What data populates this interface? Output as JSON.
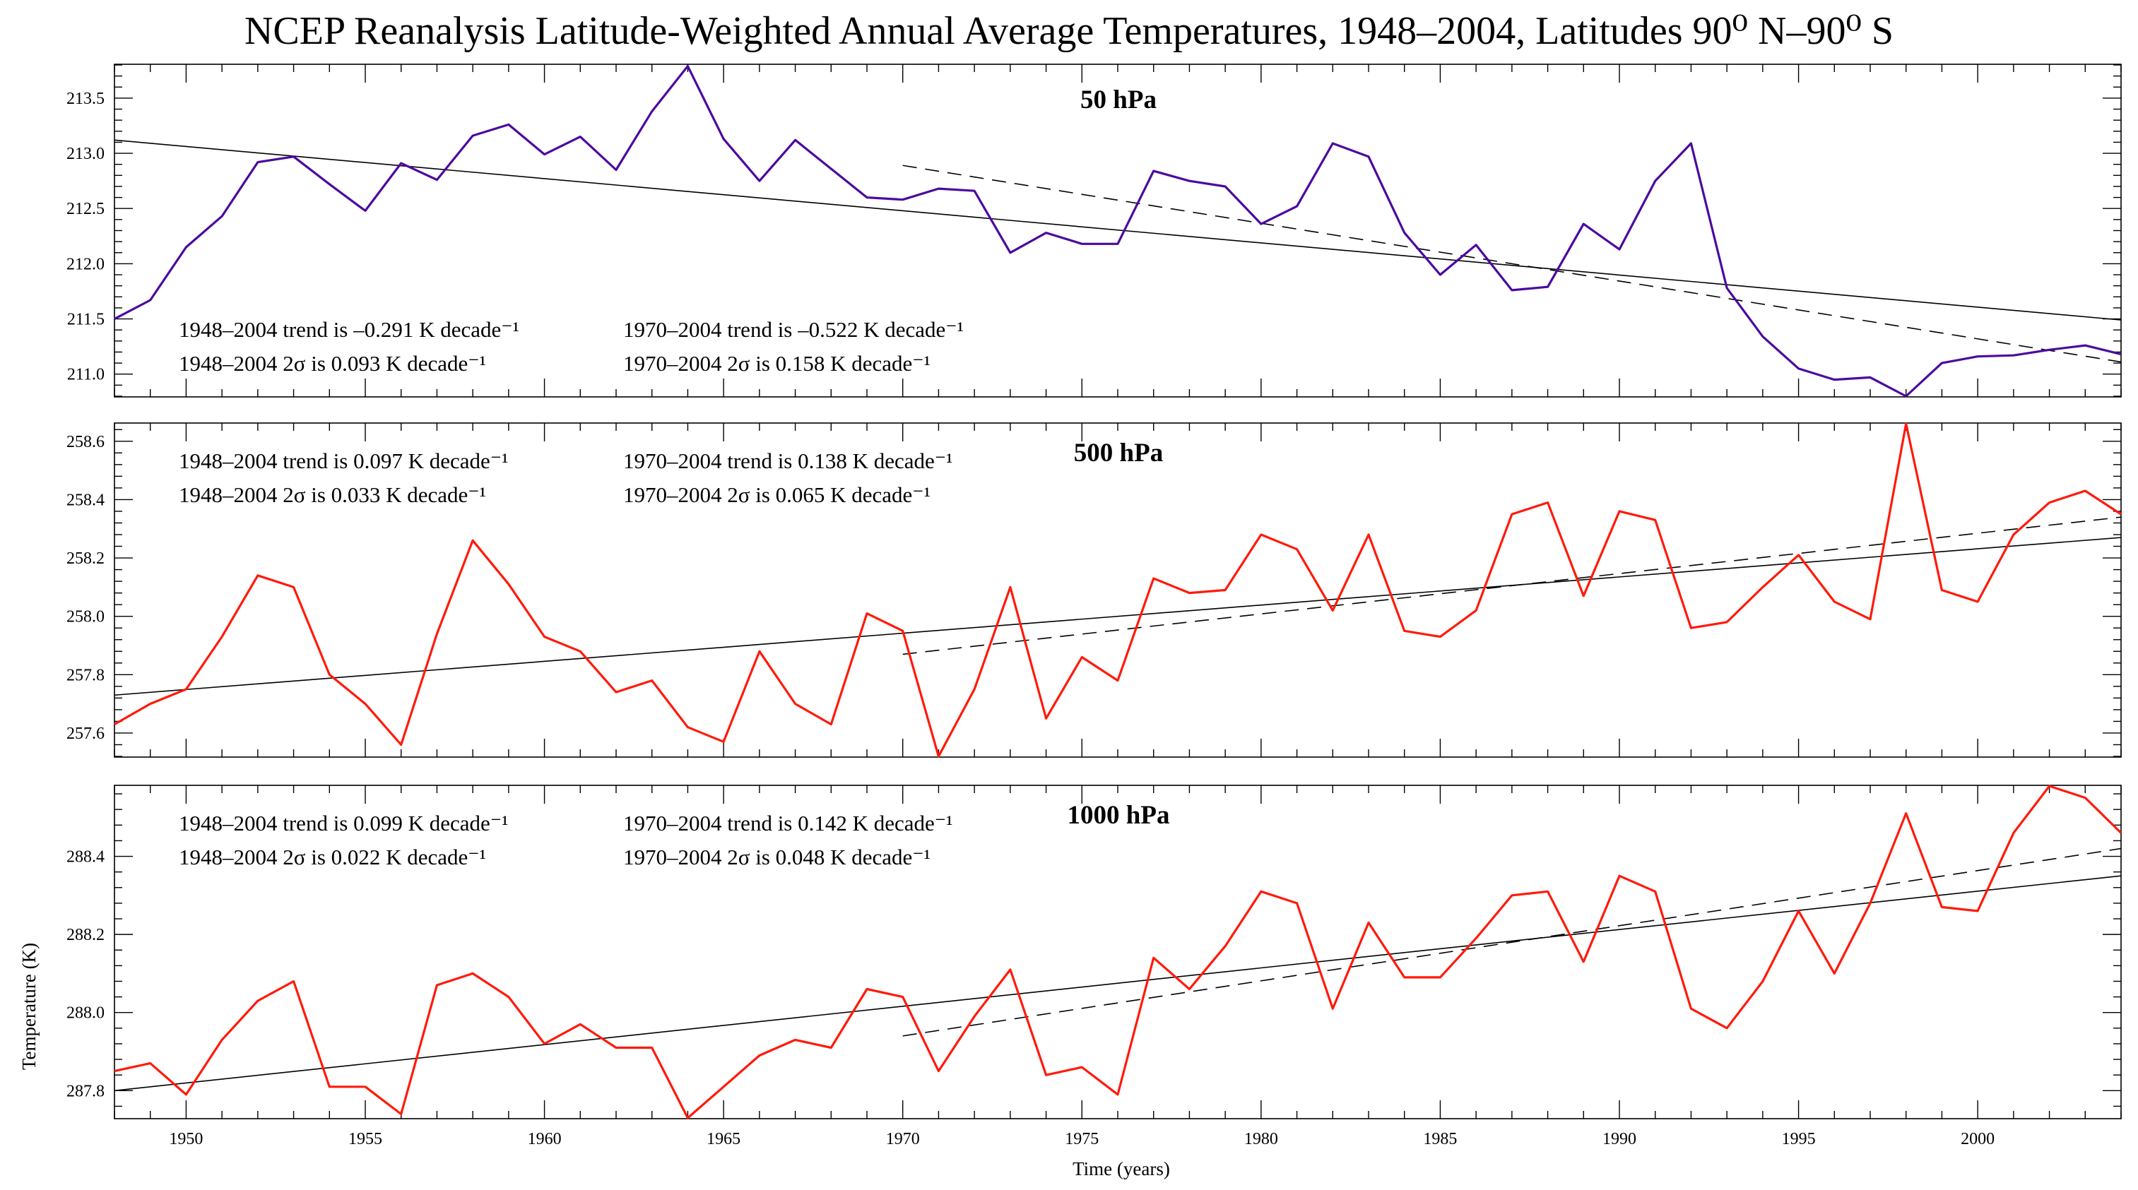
{
  "chart_data": {
    "type": "line",
    "title": "NCEP Reanalysis Latitude-Weighted Annual Average Temperatures, 1948–2004, Latitudes 90⁰ N–90⁰ S",
    "xlabel": "Time (years)",
    "ylabel": "Temperature (K)",
    "xlim": [
      1948,
      2004
    ],
    "x_ticks": [
      1950,
      1955,
      1960,
      1965,
      1970,
      1975,
      1980,
      1985,
      1990,
      1995,
      2000
    ],
    "grid": false,
    "legend": "none",
    "x": [
      1948,
      1949,
      1950,
      1951,
      1952,
      1953,
      1954,
      1955,
      1956,
      1957,
      1958,
      1959,
      1960,
      1961,
      1962,
      1963,
      1964,
      1965,
      1966,
      1967,
      1968,
      1969,
      1970,
      1971,
      1972,
      1973,
      1974,
      1975,
      1976,
      1977,
      1978,
      1979,
      1980,
      1981,
      1982,
      1983,
      1984,
      1985,
      1986,
      1987,
      1988,
      1989,
      1990,
      1991,
      1992,
      1993,
      1994,
      1995,
      1996,
      1997,
      1998,
      1999,
      2000,
      2001,
      2002,
      2003,
      2004
    ],
    "panels": [
      {
        "label": "50 hPa",
        "color": "#4b0a9e",
        "ylim": [
          210.8,
          213.8
        ],
        "y_ticks": [
          211.0,
          211.5,
          212.0,
          212.5,
          213.0,
          213.5
        ],
        "y_tick_labels": [
          "211.0",
          "211.5",
          "212.0",
          "212.5",
          "213.0",
          "213.5"
        ],
        "values": [
          211.5,
          211.67,
          212.15,
          212.43,
          212.92,
          212.97,
          212.72,
          212.48,
          212.91,
          212.76,
          213.16,
          213.26,
          212.99,
          213.15,
          212.85,
          213.38,
          213.79,
          213.13,
          212.75,
          213.12,
          212.86,
          212.6,
          212.58,
          212.68,
          212.66,
          212.1,
          212.28,
          212.18,
          212.18,
          212.84,
          212.75,
          212.7,
          212.36,
          212.52,
          213.09,
          212.97,
          212.28,
          211.9,
          212.17,
          211.76,
          211.79,
          212.36,
          212.13,
          212.75,
          213.09,
          211.78,
          211.34,
          211.05,
          210.95,
          210.97,
          210.8,
          211.1,
          211.16,
          211.17,
          211.22,
          211.26,
          211.18
        ],
        "trend_full": {
          "x": [
            1948,
            2004
          ],
          "y": [
            213.12,
            211.49
          ]
        },
        "trend_recent": {
          "x": [
            1970,
            2004
          ],
          "y": [
            212.89,
            211.11
          ]
        },
        "annotations": [
          "1948–2004 trend is –0.291 K decade⁻¹",
          "1948–2004 2σ is 0.093 K decade⁻¹",
          "1970–2004 trend is –0.522 K decade⁻¹",
          "1970–2004 2σ is 0.158 K decade⁻¹"
        ]
      },
      {
        "label": "500 hPa",
        "color": "#ff1a0a",
        "ylim": [
          257.52,
          258.66
        ],
        "y_ticks": [
          257.6,
          257.8,
          258.0,
          258.2,
          258.4,
          258.6
        ],
        "y_tick_labels": [
          "257.6",
          "257.8",
          "258.0",
          "258.2",
          "258.4",
          "258.6"
        ],
        "values": [
          257.63,
          257.7,
          257.75,
          257.93,
          258.14,
          258.1,
          257.8,
          257.7,
          257.56,
          257.94,
          258.26,
          258.11,
          257.93,
          257.88,
          257.74,
          257.78,
          257.62,
          257.57,
          257.88,
          257.7,
          257.63,
          258.01,
          257.95,
          257.52,
          257.75,
          258.1,
          257.65,
          257.86,
          257.78,
          258.13,
          258.08,
          258.09,
          258.28,
          258.23,
          258.02,
          258.28,
          257.95,
          257.93,
          258.02,
          258.35,
          258.39,
          258.07,
          258.36,
          258.33,
          257.96,
          257.98,
          258.1,
          258.21,
          258.05,
          257.99,
          258.66,
          258.09,
          258.05,
          258.28,
          258.39,
          258.43,
          258.35
        ],
        "trend_full": {
          "x": [
            1948,
            2004
          ],
          "y": [
            257.73,
            258.27
          ]
        },
        "trend_recent": {
          "x": [
            1970,
            2004
          ],
          "y": [
            257.87,
            258.34
          ]
        },
        "annotations": [
          "1948–2004 trend is 0.097 K decade⁻¹",
          "1948–2004 2σ is 0.033 K decade⁻¹",
          "1970–2004 trend is 0.138 K decade⁻¹",
          "1970–2004 2σ is 0.065 K decade⁻¹"
        ]
      },
      {
        "label": "1000 hPa",
        "color": "#ff1a0a",
        "ylim": [
          287.73,
          288.58
        ],
        "y_ticks": [
          287.8,
          288.0,
          288.2,
          288.4
        ],
        "y_tick_labels": [
          "287.8",
          "288.0",
          "288.2",
          "288.4"
        ],
        "values": [
          287.85,
          287.87,
          287.79,
          287.93,
          288.03,
          288.08,
          287.81,
          287.81,
          287.74,
          288.07,
          288.1,
          288.04,
          287.92,
          287.97,
          287.91,
          287.91,
          287.73,
          287.81,
          287.89,
          287.93,
          287.91,
          288.06,
          288.04,
          287.85,
          287.99,
          288.11,
          287.84,
          287.86,
          287.79,
          288.14,
          288.06,
          288.17,
          288.31,
          288.28,
          288.01,
          288.23,
          288.09,
          288.09,
          288.19,
          288.3,
          288.31,
          288.13,
          288.35,
          288.31,
          288.01,
          287.96,
          288.08,
          288.26,
          288.1,
          288.28,
          288.51,
          288.27,
          288.26,
          288.46,
          288.58,
          288.55,
          288.46
        ],
        "trend_full": {
          "x": [
            1948,
            2004
          ],
          "y": [
            287.8,
            288.35
          ]
        },
        "trend_recent": {
          "x": [
            1970,
            2004
          ],
          "y": [
            287.94,
            288.42
          ]
        },
        "annotations": [
          "1948–2004 trend is 0.099 K decade⁻¹",
          "1948–2004 2σ is 0.022 K decade⁻¹",
          "1970–2004 trend is 0.142 K decade⁻¹",
          "1970–2004 2σ is 0.048 K decade⁻¹"
        ]
      }
    ]
  }
}
